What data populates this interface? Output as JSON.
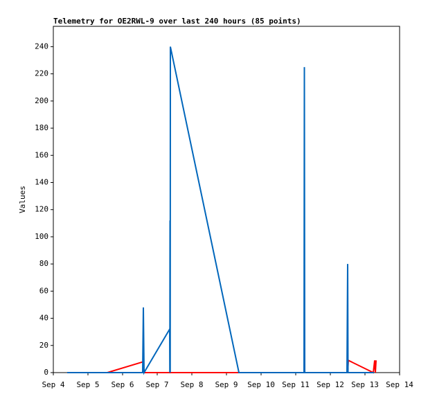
{
  "chart_data": {
    "type": "line",
    "title": "Telemetry for OE2RWL-9 over last 240 hours (85 points)",
    "y_label": "Values",
    "xlim": [
      4,
      14
    ],
    "xticks": [
      {
        "value": 4,
        "label": "Sep 4"
      },
      {
        "value": 5,
        "label": "Sep 5"
      },
      {
        "value": 6,
        "label": "Sep 6"
      },
      {
        "value": 7,
        "label": "Sep 7"
      },
      {
        "value": 8,
        "label": "Sep 8"
      },
      {
        "value": 9,
        "label": "Sep 9"
      },
      {
        "value": 10,
        "label": "Sep 10"
      },
      {
        "value": 11,
        "label": "Sep 11"
      },
      {
        "value": 12,
        "label": "Sep 12"
      },
      {
        "value": 13,
        "label": "Sep 13"
      },
      {
        "value": 14,
        "label": "Sep 14"
      }
    ],
    "ylim": [
      0,
      255
    ],
    "yticks": [
      0,
      20,
      40,
      60,
      80,
      100,
      120,
      140,
      160,
      180,
      200,
      220,
      240
    ],
    "series": [
      {
        "color": "#ff0000",
        "x": [
          4.4,
          5.56,
          6.6,
          6.62,
          11.24,
          11.25,
          11.26,
          12.5,
          12.52,
          13.24,
          13.28,
          13.3,
          13.32
        ],
        "values": [
          0,
          0,
          8,
          0,
          0,
          10,
          0,
          0,
          9,
          0,
          9,
          0,
          9
        ]
      },
      {
        "color": "#0066bb",
        "x": [
          4.4,
          6.58,
          6.6,
          6.62,
          7.36,
          7.365,
          7.37,
          7.375,
          7.38,
          9.36,
          11.24,
          11.25,
          11.26,
          12.48,
          12.5,
          12.51,
          13.26
        ],
        "values": [
          0,
          0,
          48,
          0,
          32,
          0,
          112,
          0,
          240,
          0,
          0,
          225,
          0,
          0,
          80,
          0,
          0
        ]
      }
    ]
  }
}
